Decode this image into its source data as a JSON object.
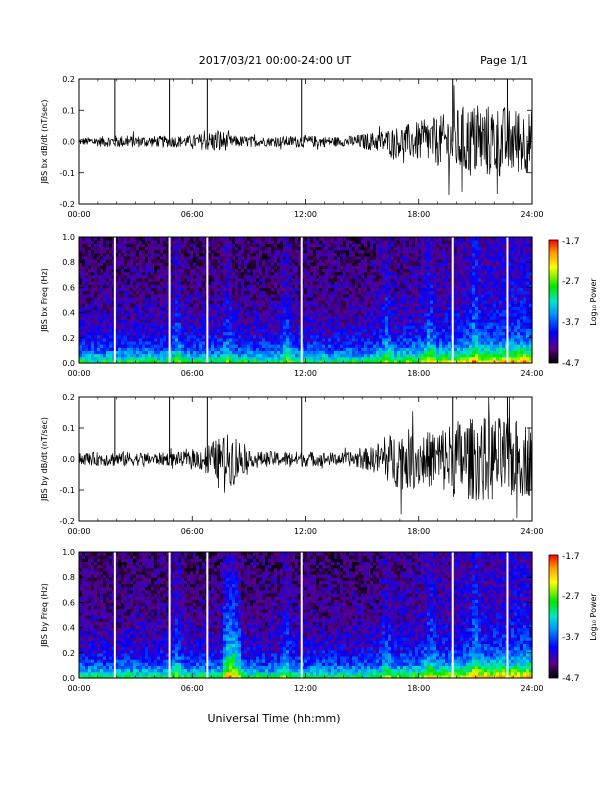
{
  "header": {
    "date_range": "2017/03/21   00:00-24:00 UT",
    "page": "Page 1/1"
  },
  "x_axis": {
    "label": "Universal Time (hh:mm)",
    "ticks": [
      "00:00",
      "06:00",
      "12:00",
      "18:00",
      "24:00"
    ],
    "range_hours": [
      0,
      24
    ]
  },
  "colorbar": {
    "label": "Log₁₀ Power",
    "ticks": [
      "-1.7",
      "-2.7",
      "-3.7",
      "-4.7"
    ],
    "range": [
      -4.7,
      -1.7
    ]
  },
  "chart_data": [
    {
      "type": "line",
      "ylabel": "JBS bx dB/dt (nT/sec)",
      "ylim": [
        -0.2,
        0.2
      ],
      "y_ticks": [
        "0.2",
        "0.1",
        "0.0",
        "-0.1",
        "-0.2"
      ],
      "xlim": [
        0,
        24
      ],
      "spike_hours": [
        1.9,
        4.8,
        6.8,
        11.8,
        19.8,
        22.7
      ],
      "envelope": {
        "hours": [
          0,
          2,
          4,
          6,
          7.5,
          8,
          10,
          12,
          14,
          15.5,
          17,
          19,
          20.5,
          22,
          24
        ],
        "amplitude": [
          0.012,
          0.02,
          0.018,
          0.02,
          0.04,
          0.02,
          0.015,
          0.02,
          0.015,
          0.03,
          0.05,
          0.08,
          0.12,
          0.12,
          0.1
        ]
      }
    },
    {
      "type": "heatmap",
      "ylabel": "JBS bx Freq (Hz)",
      "ylim": [
        0.0,
        1.0
      ],
      "y_ticks": [
        "1.0",
        "0.8",
        "0.6",
        "0.4",
        "0.2",
        "0.0"
      ],
      "xlim": [
        0,
        24
      ],
      "gap_hours": [
        1.9,
        4.8,
        6.8,
        11.8,
        19.8,
        22.7
      ],
      "bright_band_hours": [
        5.2,
        7.9,
        11.0,
        16.3,
        18.6,
        21.0
      ]
    },
    {
      "type": "line",
      "ylabel": "JBS by dB/dt (nT/sec)",
      "ylim": [
        -0.2,
        0.2
      ],
      "y_ticks": [
        "0.2",
        "0.1",
        "0.0",
        "-0.1",
        "-0.2"
      ],
      "xlim": [
        0,
        24
      ],
      "spike_hours": [
        1.9,
        4.8,
        6.8,
        11.8,
        19.8,
        22.7
      ],
      "envelope": {
        "hours": [
          0,
          2,
          4,
          6,
          7.8,
          8.2,
          9,
          12,
          14,
          15.5,
          17,
          18.5,
          20,
          22,
          24
        ],
        "amplitude": [
          0.02,
          0.025,
          0.02,
          0.025,
          0.08,
          0.09,
          0.025,
          0.025,
          0.02,
          0.04,
          0.1,
          0.09,
          0.13,
          0.14,
          0.12
        ]
      }
    },
    {
      "type": "heatmap",
      "ylabel": "JBS by Freq (Hz)",
      "ylim": [
        0.0,
        1.0
      ],
      "y_ticks": [
        "1.0",
        "0.8",
        "0.6",
        "0.4",
        "0.2",
        "0.0"
      ],
      "xlim": [
        0,
        24
      ],
      "gap_hours": [
        1.9,
        4.8,
        6.8,
        11.8,
        19.8,
        22.7
      ],
      "bright_band_hours": [
        5.2,
        7.9,
        8.2,
        11.0,
        16.3,
        18.6,
        21.0
      ]
    }
  ]
}
